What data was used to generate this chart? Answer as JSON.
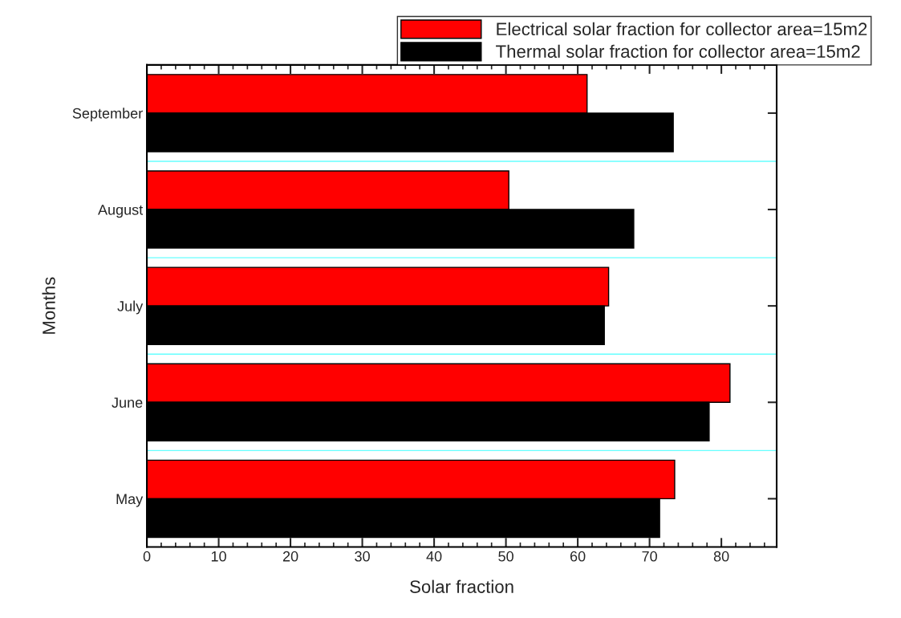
{
  "chart_data": {
    "type": "bar",
    "orientation": "horizontal",
    "xlabel": "Solar fraction",
    "ylabel": "Months",
    "categories": [
      "September",
      "August",
      "July",
      "June",
      "May"
    ],
    "series": [
      {
        "name": "Electrical solar fraction for collector area=15m2",
        "color": "#ff0000",
        "values": [
          61.3,
          50.4,
          64.3,
          81.2,
          73.5
        ]
      },
      {
        "name": "Thermal solar fraction for collector area=15m2",
        "color": "#000000",
        "values": [
          73.3,
          67.8,
          63.7,
          78.3,
          71.4
        ]
      }
    ],
    "xlim": [
      0,
      87.7
    ],
    "xticks": [
      0,
      10,
      20,
      30,
      40,
      50,
      60,
      70,
      80
    ],
    "grid": "y",
    "legend": "top right"
  }
}
